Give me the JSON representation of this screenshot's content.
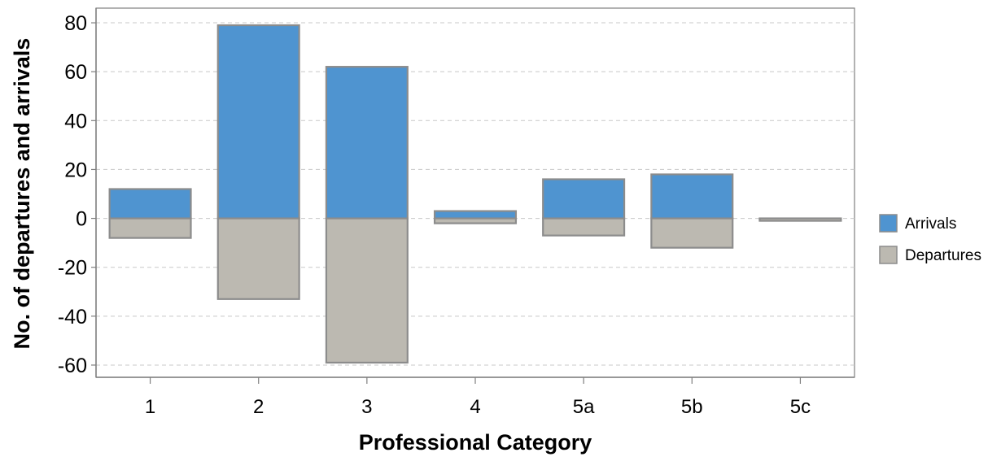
{
  "chart_data": {
    "type": "bar",
    "stacked": true,
    "title": "",
    "xlabel": "Professional Category",
    "ylabel": "No. of departures and arrivals",
    "categories": [
      "1",
      "2",
      "3",
      "4",
      "5a",
      "5b",
      "5c"
    ],
    "ylim": [
      -65,
      86
    ],
    "yticks": [
      80,
      60,
      40,
      20,
      0,
      -20,
      -40,
      -60
    ],
    "grid": true,
    "legend": "right",
    "series": [
      {
        "name": "Arrivals",
        "color": "#4f94d0",
        "values": [
          12,
          79,
          62,
          3,
          16,
          18,
          0
        ]
      },
      {
        "name": "Departures",
        "color": "#bcb9b1",
        "values": [
          -8,
          -33,
          -59,
          -2,
          -7,
          -12,
          -1
        ]
      }
    ]
  },
  "colors": {
    "bar_edge": "#8c8c8c",
    "axis": "#7f7f7f",
    "grid": "#c8c8c8"
  }
}
